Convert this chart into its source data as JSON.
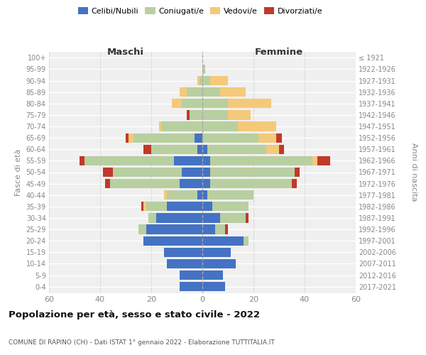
{
  "age_groups": [
    "0-4",
    "5-9",
    "10-14",
    "15-19",
    "20-24",
    "25-29",
    "30-34",
    "35-39",
    "40-44",
    "45-49",
    "50-54",
    "55-59",
    "60-64",
    "65-69",
    "70-74",
    "75-79",
    "80-84",
    "85-89",
    "90-94",
    "95-99",
    "100+"
  ],
  "birth_years": [
    "2017-2021",
    "2012-2016",
    "2007-2011",
    "2002-2006",
    "1997-2001",
    "1992-1996",
    "1987-1991",
    "1982-1986",
    "1977-1981",
    "1972-1976",
    "1967-1971",
    "1962-1966",
    "1957-1961",
    "1952-1956",
    "1947-1951",
    "1942-1946",
    "1937-1941",
    "1932-1936",
    "1927-1931",
    "1922-1926",
    "≤ 1921"
  ],
  "colors": {
    "celibe": "#4472c4",
    "coniugato": "#b8cfa0",
    "vedovo": "#f5c97a",
    "divorziato": "#c0392b"
  },
  "maschi": {
    "celibe": [
      9,
      9,
      14,
      15,
      23,
      22,
      18,
      14,
      2,
      9,
      8,
      11,
      2,
      3,
      0,
      0,
      0,
      0,
      0,
      0,
      0
    ],
    "coniugato": [
      0,
      0,
      0,
      0,
      0,
      3,
      3,
      8,
      12,
      27,
      27,
      35,
      18,
      24,
      16,
      5,
      8,
      6,
      1,
      0,
      0
    ],
    "vedovo": [
      0,
      0,
      0,
      0,
      0,
      0,
      0,
      1,
      1,
      0,
      0,
      0,
      0,
      2,
      1,
      0,
      4,
      3,
      1,
      0,
      0
    ],
    "divorziato": [
      0,
      0,
      0,
      0,
      0,
      0,
      0,
      1,
      0,
      2,
      4,
      2,
      3,
      1,
      0,
      1,
      0,
      0,
      0,
      0,
      0
    ]
  },
  "femmine": {
    "nubile": [
      9,
      8,
      13,
      11,
      16,
      5,
      7,
      4,
      2,
      3,
      3,
      3,
      2,
      0,
      0,
      0,
      0,
      0,
      0,
      0,
      0
    ],
    "coniugata": [
      0,
      0,
      0,
      0,
      2,
      4,
      10,
      14,
      18,
      32,
      33,
      40,
      23,
      22,
      14,
      10,
      10,
      7,
      3,
      1,
      0
    ],
    "vedova": [
      0,
      0,
      0,
      0,
      0,
      0,
      0,
      0,
      0,
      0,
      0,
      2,
      5,
      7,
      15,
      9,
      17,
      10,
      7,
      0,
      0
    ],
    "divorziata": [
      0,
      0,
      0,
      0,
      0,
      1,
      1,
      0,
      0,
      2,
      2,
      5,
      2,
      2,
      0,
      0,
      0,
      0,
      0,
      0,
      0
    ]
  },
  "xlim": 60,
  "title": "Popolazione per età, sesso e stato civile - 2022",
  "subtitle": "COMUNE DI RAPINO (CH) - Dati ISTAT 1° gennaio 2022 - Elaborazione TUTTITALIA.IT",
  "ylabel_left": "Fasce di età",
  "ylabel_right": "Anni di nascita",
  "xlabel_left": "Maschi",
  "xlabel_right": "Femmine",
  "legend_labels": [
    "Celibi/Nubili",
    "Coniugati/e",
    "Vedovi/e",
    "Divorziati/e"
  ],
  "bg_color": "#f0f0f0",
  "grid_color": "#ffffff",
  "tick_color": "#888888"
}
